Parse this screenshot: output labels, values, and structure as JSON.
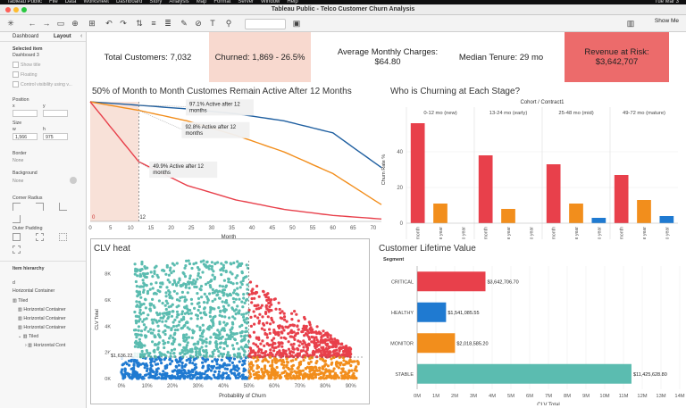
{
  "menubar": {
    "items": [
      "Tableau Public",
      "File",
      "Data",
      "Worksheet",
      "Dashboard",
      "Story",
      "Analysis",
      "Map",
      "Format",
      "Server",
      "Window",
      "Help"
    ],
    "clock": "Tue Mar 3"
  },
  "window": {
    "title": "Tableau Public - Telco Customer Churn Analysis"
  },
  "toolbar": {
    "show_me": "Show Me"
  },
  "left_pane": {
    "tabs": [
      "Dashboard",
      "Layout"
    ],
    "selected_item_heading": "Selected item",
    "selected_item": "Dashboard 3",
    "show_title": "Show title",
    "floating": "Floating",
    "control_visibility": "Control visibility using v...",
    "position": "Position",
    "x_label": "x",
    "y_label": "y",
    "size": "Size",
    "w_label": "w",
    "h_label": "h",
    "w_value": "1,566",
    "h_value": "975",
    "border": "Border",
    "border_value": "None",
    "background": "Background",
    "background_value": "None",
    "corner_radius": "Corner Radius",
    "outer_padding": "Outer Padding",
    "item_hierarchy": "Item hierarchy",
    "hierarchy": [
      "Horizontal Container",
      "Tiled",
      "Horizontal Container",
      "Horizontal Container",
      "Horizontal Container",
      "Tiled",
      "Horizontal Cont"
    ],
    "hierarchy_root": "d"
  },
  "kpis": {
    "total_customers": "Total Customers: 7,032",
    "churned": "Churned: 1,869  - 26.5%",
    "avg_charges_line1": "Average Monthly Charges:",
    "avg_charges_line2": "$64.80",
    "median_tenure": "Median Tenure: 29 mo",
    "revenue_at_risk": "Revenue at Risk: $3,642,707"
  },
  "colors": {
    "red": "#e8404b",
    "orange": "#f28e1c",
    "blue": "#1f5fa0",
    "teal": "#5bbcb0",
    "bar_blue": "#1f7ad1",
    "kpi_churn_bg": "#f8d9cf",
    "kpi_risk_bg": "#ec6b6b"
  },
  "survival": {
    "title": "50% of Month to Month Customes Remain Active After 12 Months",
    "annotations": [
      "97.1%  Active after 12 months",
      "92.8% Active after 12 months",
      "49.9% Active after 12 months"
    ],
    "marker_start": "0",
    "marker_end": "12",
    "xlabel": "Month"
  },
  "churn_stage": {
    "title": "Who is Churning at Each Stage?",
    "header": "Cohort / Contract1",
    "ylabel": "Churn Rate %"
  },
  "clv_heat": {
    "title": "CLV heat",
    "ylabel": "CLV Total",
    "xlabel": "Probability of Churn",
    "ref_label": "$1,636.22"
  },
  "clv": {
    "title": "Customer Lifetime Value",
    "segment_header": "Segment",
    "xlabel": "CLV Total",
    "value_labels": [
      "$3,642,706.70",
      "$1,541,085.55",
      "$2,018,585.20",
      "$11,425,628.80"
    ]
  },
  "chart_data": [
    {
      "type": "line",
      "title": "50% of Month to Month Customes Remain Active After 12 Months",
      "xlabel": "Month",
      "x": [
        0,
        12,
        24,
        36,
        48,
        60,
        72
      ],
      "xlim": [
        0,
        72
      ],
      "x_ticks": [
        0,
        5,
        10,
        15,
        20,
        25,
        30,
        35,
        40,
        45,
        50,
        55,
        60,
        65,
        70
      ],
      "series": [
        {
          "color": "#1f5fa0",
          "values": [
            100,
            97.1,
            94,
            90,
            84,
            74,
            45
          ]
        },
        {
          "color": "#f28e1c",
          "values": [
            100,
            92.8,
            84,
            72,
            58,
            40,
            14
          ]
        },
        {
          "color": "#e8404b",
          "values": [
            100,
            49.9,
            30,
            18,
            10,
            5,
            2
          ]
        }
      ]
    },
    {
      "type": "bar",
      "title": "Who is Churning at Each Stage?",
      "ylabel": "Churn Rate %",
      "y_ticks": [
        0,
        20,
        40
      ],
      "ylim": [
        0,
        60
      ],
      "cohorts": [
        "0-12 mo (new)",
        "13-24 mo (early)",
        "25-48 mo (mid)",
        "49-72 mo (mature)"
      ],
      "categories": [
        "Month-to-month",
        "One year",
        "Two year"
      ],
      "series": [
        {
          "cohort": "0-12 mo (new)",
          "values": [
            56,
            11,
            0
          ],
          "colors": [
            "#e8404b",
            "#f28e1c",
            "#1f7ad1"
          ]
        },
        {
          "cohort": "13-24 mo (early)",
          "values": [
            38,
            8,
            0
          ],
          "colors": [
            "#e8404b",
            "#f28e1c",
            "#1f7ad1"
          ]
        },
        {
          "cohort": "25-48 mo (mid)",
          "values": [
            33,
            11,
            3
          ],
          "colors": [
            "#e8404b",
            "#f28e1c",
            "#1f7ad1"
          ]
        },
        {
          "cohort": "49-72 mo (mature)",
          "values": [
            27,
            13,
            4
          ],
          "colors": [
            "#e8404b",
            "#f28e1c",
            "#1f7ad1"
          ]
        }
      ]
    },
    {
      "type": "scatter",
      "title": "CLV heat",
      "xlabel": "Probability of Churn",
      "ylabel": "CLV Total",
      "x_ticks": [
        "0%",
        "10%",
        "20%",
        "30%",
        "40%",
        "50%",
        "60%",
        "70%",
        "80%",
        "90%"
      ],
      "y_ticks": [
        "0K",
        "2K",
        "4K",
        "6K",
        "8K"
      ],
      "xlim": [
        0,
        0.95
      ],
      "ylim": [
        0,
        9000
      ],
      "ref_lines": {
        "x": 0.5,
        "y": 1636.22
      },
      "quadrants": [
        {
          "segment": "STABLE",
          "color": "#1f7ad1",
          "x": [
            0.0,
            0.5
          ],
          "y": [
            0,
            1636
          ]
        },
        {
          "segment": "HEALTHY",
          "color": "#5bbcb0",
          "x": [
            0.0,
            0.5
          ],
          "y": [
            1636,
            9000
          ]
        },
        {
          "segment": "CRITICAL",
          "color": "#e8404b",
          "x": [
            0.5,
            0.9
          ],
          "y": [
            1636,
            7500
          ]
        },
        {
          "segment": "MONITOR",
          "color": "#f28e1c",
          "x": [
            0.5,
            0.93
          ],
          "y": [
            0,
            1636
          ]
        }
      ]
    },
    {
      "type": "bar",
      "orientation": "horizontal",
      "title": "Customer Lifetime Value",
      "xlabel": "CLV Total",
      "categories": [
        "CRITICAL",
        "HEALTHY",
        "MONITOR",
        "STABLE"
      ],
      "values": [
        3642706.7,
        1541085.55,
        2018585.2,
        11425628.8
      ],
      "colors": [
        "#e8404b",
        "#1f7ad1",
        "#f28e1c",
        "#5bbcb0"
      ],
      "x_ticks": [
        "0M",
        "1M",
        "2M",
        "3M",
        "4M",
        "5M",
        "6M",
        "7M",
        "8M",
        "9M",
        "10M",
        "11M",
        "12M",
        "13M",
        "14M"
      ],
      "xlim": [
        0,
        14000000
      ]
    }
  ]
}
